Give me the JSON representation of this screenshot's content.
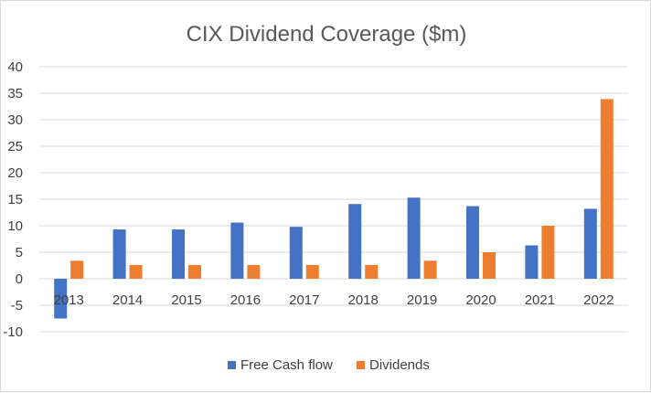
{
  "chart_data": {
    "type": "bar",
    "title": "CIX Dividend Coverage ($m)",
    "xlabel": "",
    "ylabel": "",
    "categories": [
      "2013",
      "2014",
      "2015",
      "2016",
      "2017",
      "2018",
      "2019",
      "2020",
      "2021",
      "2022"
    ],
    "series": [
      {
        "name": "Free Cash flow",
        "color": "#4472C4",
        "values": [
          -7.5,
          9.3,
          9.3,
          10.6,
          9.8,
          14.1,
          15.3,
          13.7,
          6.3,
          13.2
        ]
      },
      {
        "name": "Dividends",
        "color": "#ED7D31",
        "values": [
          3.4,
          2.6,
          2.6,
          2.6,
          2.6,
          2.6,
          3.4,
          5.0,
          10.0,
          33.9
        ]
      }
    ],
    "ylim": [
      -10,
      40
    ],
    "yticks": [
      40,
      35,
      30,
      25,
      20,
      15,
      10,
      5,
      0,
      -5,
      -10
    ],
    "grid": true,
    "legend_position": "bottom"
  }
}
